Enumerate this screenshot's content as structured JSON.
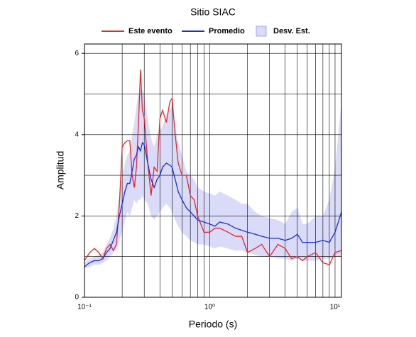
{
  "chart_data": {
    "type": "line",
    "title": "Sitio SIAC",
    "xlabel": "Periodo (s)",
    "ylabel": "Amplitud",
    "xscale": "log",
    "grid": true,
    "xlim": [
      0.1,
      11.25
    ],
    "ylim": [
      0,
      6.23
    ],
    "xticks": [
      {
        "value": 0.1,
        "label": "10⁻¹"
      },
      {
        "value": 1,
        "label": "10⁰"
      },
      {
        "value": 10,
        "label": "10¹"
      }
    ],
    "xminor": [
      0.2,
      0.3,
      0.4,
      0.5,
      0.6,
      0.7,
      0.8,
      0.9,
      2,
      3,
      4,
      5,
      6,
      7,
      8,
      9
    ],
    "yticks": [
      0,
      2,
      4,
      6
    ],
    "yminor": [
      1,
      3,
      5
    ],
    "x": [
      0.1,
      0.11,
      0.12,
      0.13,
      0.14,
      0.15,
      0.16,
      0.17,
      0.18,
      0.19,
      0.2,
      0.21,
      0.22,
      0.23,
      0.24,
      0.25,
      0.26,
      0.27,
      0.28,
      0.29,
      0.3,
      0.32,
      0.34,
      0.36,
      0.38,
      0.4,
      0.42,
      0.45,
      0.48,
      0.5,
      0.53,
      0.56,
      0.6,
      0.65,
      0.7,
      0.75,
      0.8,
      0.9,
      1.0,
      1.1,
      1.2,
      1.4,
      1.6,
      1.8,
      2.0,
      2.3,
      2.6,
      3.0,
      3.5,
      4.0,
      4.5,
      5,
      5.5,
      6,
      7,
      8,
      9,
      10,
      11.25
    ],
    "series": [
      {
        "name": "Este evento",
        "color": "#e8262a",
        "values": [
          0.9,
          1.1,
          1.2,
          1.1,
          0.95,
          1.2,
          1.3,
          1.15,
          1.3,
          2.3,
          3.7,
          3.8,
          3.85,
          3.85,
          3.0,
          2.7,
          3.2,
          4.3,
          5.6,
          4.6,
          4.4,
          3.3,
          2.5,
          3.2,
          3.1,
          4.4,
          4.6,
          4.3,
          4.8,
          4.9,
          4.0,
          3.3,
          3.0,
          3.0,
          2.5,
          2.4,
          2.0,
          1.6,
          1.6,
          1.7,
          1.7,
          1.6,
          1.5,
          1.5,
          1.1,
          1.2,
          1.3,
          1.0,
          1.3,
          1.2,
          0.95,
          1.0,
          0.9,
          1.0,
          1.1,
          0.85,
          0.8,
          1.1,
          1.15
        ]
      },
      {
        "name": "Promedio",
        "color": "#1a2fd6",
        "values": [
          0.75,
          0.85,
          0.9,
          0.9,
          0.95,
          1.1,
          1.2,
          1.4,
          1.6,
          2.0,
          2.3,
          2.6,
          2.8,
          2.8,
          3.1,
          3.4,
          3.5,
          3.7,
          3.6,
          3.8,
          3.75,
          3.3,
          2.9,
          2.7,
          2.9,
          3.0,
          3.2,
          3.3,
          3.25,
          3.2,
          2.9,
          2.6,
          2.4,
          2.2,
          2.1,
          2.0,
          1.9,
          1.85,
          1.8,
          1.75,
          1.85,
          1.8,
          1.7,
          1.65,
          1.6,
          1.55,
          1.5,
          1.45,
          1.45,
          1.4,
          1.45,
          1.55,
          1.35,
          1.35,
          1.35,
          1.4,
          1.35,
          1.6,
          2.1
        ]
      },
      {
        "name": "Desv. Est.",
        "type": "band",
        "color": "#dadaf9",
        "lower": [
          0.7,
          0.75,
          0.8,
          0.8,
          0.85,
          0.9,
          1.0,
          1.1,
          1.2,
          1.4,
          1.6,
          1.9,
          2.1,
          2.0,
          2.2,
          2.4,
          2.3,
          2.4,
          2.4,
          2.5,
          2.4,
          2.3,
          2.0,
          1.9,
          2.0,
          2.1,
          2.2,
          2.3,
          2.2,
          2.1,
          1.9,
          1.75,
          1.6,
          1.5,
          1.4,
          1.35,
          1.3,
          1.3,
          1.25,
          1.2,
          1.25,
          1.2,
          1.15,
          1.15,
          1.1,
          1.05,
          1.0,
          1.0,
          0.95,
          0.95,
          0.9,
          0.95,
          0.9,
          0.9,
          0.9,
          0.95,
          0.95,
          1.0,
          1.0
        ],
        "upper": [
          0.85,
          0.95,
          1.0,
          1.05,
          1.1,
          1.3,
          1.45,
          1.7,
          2.0,
          2.5,
          3.0,
          3.3,
          3.5,
          3.6,
          4.0,
          4.3,
          4.7,
          5.0,
          5.1,
          5.1,
          5.0,
          4.4,
          3.9,
          3.7,
          4.0,
          4.1,
          4.2,
          4.5,
          4.6,
          4.7,
          4.2,
          3.8,
          3.5,
          3.1,
          3.0,
          2.9,
          2.7,
          2.6,
          2.55,
          2.5,
          2.6,
          2.5,
          2.4,
          2.3,
          2.3,
          2.1,
          2.0,
          1.95,
          1.9,
          1.8,
          2.1,
          2.2,
          1.8,
          1.8,
          2.0,
          2.0,
          2.4,
          3.2,
          4.8
        ]
      }
    ]
  }
}
